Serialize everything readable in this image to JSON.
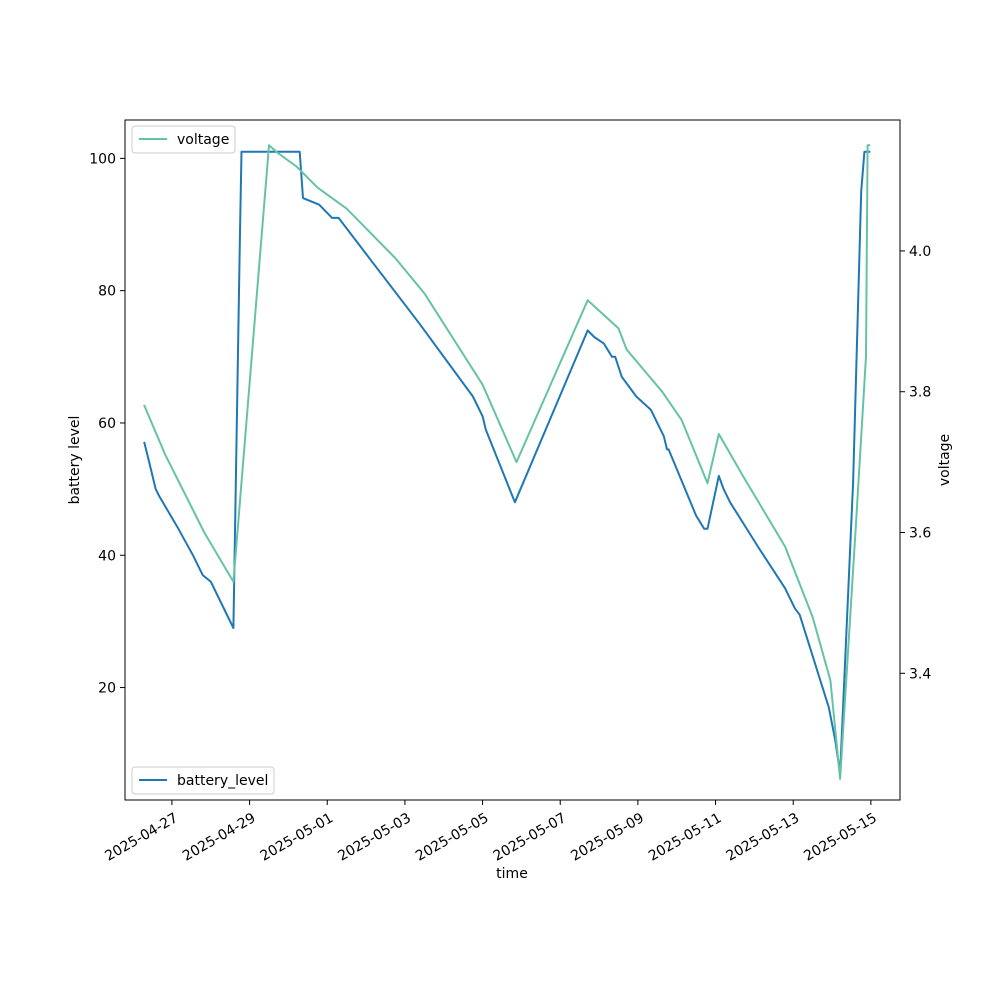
{
  "chart_data": {
    "type": "line",
    "xlabel": "time",
    "ylabel_left": "battery level",
    "ylabel_right": "voltage",
    "x_ticks": [
      "2025-04-27",
      "2025-04-29",
      "2025-05-01",
      "2025-05-03",
      "2025-05-05",
      "2025-05-07",
      "2025-05-09",
      "2025-05-11",
      "2025-05-13",
      "2025-05-15"
    ],
    "y_left_ticks": [
      20,
      40,
      60,
      80,
      100
    ],
    "y_right_ticks": [
      3.4,
      3.6,
      3.8,
      4.0
    ],
    "xlim": [
      "2025-04-25 19:00",
      "2025-05-15 18:00"
    ],
    "y_left_lim": [
      3,
      105.8
    ],
    "y_right_lim": [
      3.22,
      4.186
    ],
    "legend_left": {
      "position": "lower-left",
      "label": "battery_level"
    },
    "legend_right": {
      "position": "upper-left",
      "label": "voltage"
    },
    "series": [
      {
        "name": "battery_level",
        "axis": "left",
        "color": "#1f77b4",
        "points": [
          [
            "2025-04-26 07:00",
            57
          ],
          [
            "2025-04-26 10:00",
            54
          ],
          [
            "2025-04-26 14:00",
            50
          ],
          [
            "2025-04-26 16:00",
            49
          ],
          [
            "2025-04-27 04:00",
            44
          ],
          [
            "2025-04-27 13:00",
            40
          ],
          [
            "2025-04-27 19:00",
            37
          ],
          [
            "2025-04-28 00:00",
            36
          ],
          [
            "2025-04-28 14:00",
            29
          ],
          [
            "2025-04-28 18:00",
            88
          ],
          [
            "2025-04-28 19:00",
            101
          ],
          [
            "2025-04-30 07:00",
            101
          ],
          [
            "2025-04-30 09:00",
            94
          ],
          [
            "2025-04-30 19:00",
            93
          ],
          [
            "2025-05-01 03:00",
            91
          ],
          [
            "2025-05-01 07:00",
            91
          ],
          [
            "2025-05-02 08:00",
            83
          ],
          [
            "2025-05-03 09:00",
            75
          ],
          [
            "2025-05-04 03:00",
            69
          ],
          [
            "2025-05-04 18:00",
            64
          ],
          [
            "2025-05-05 00:00",
            61
          ],
          [
            "2025-05-05 02:00",
            59
          ],
          [
            "2025-05-05 20:00",
            48
          ],
          [
            "2025-05-07 17:00",
            74
          ],
          [
            "2025-05-07 21:00",
            73
          ],
          [
            "2025-05-08 03:00",
            72
          ],
          [
            "2025-05-08 08:00",
            70
          ],
          [
            "2025-05-08 10:00",
            70
          ],
          [
            "2025-05-08 14:00",
            67
          ],
          [
            "2025-05-08 23:00",
            64
          ],
          [
            "2025-05-09 08:00",
            62
          ],
          [
            "2025-05-09 16:00",
            58
          ],
          [
            "2025-05-09 18:00",
            56
          ],
          [
            "2025-05-09 19:00",
            56
          ],
          [
            "2025-05-10 12:00",
            46
          ],
          [
            "2025-05-10 17:00",
            44
          ],
          [
            "2025-05-10 19:00",
            44
          ],
          [
            "2025-05-11 02:00",
            52
          ],
          [
            "2025-05-11 05:00",
            50
          ],
          [
            "2025-05-11 09:00",
            48
          ],
          [
            "2025-05-12 03:00",
            41
          ],
          [
            "2025-05-12 19:00",
            35
          ],
          [
            "2025-05-13 01:00",
            32
          ],
          [
            "2025-05-13 04:00",
            31
          ],
          [
            "2025-05-13 22:00",
            17
          ],
          [
            "2025-05-14 02:00",
            12
          ],
          [
            "2025-05-14 05:00",
            7
          ],
          [
            "2025-05-14 13:00",
            51
          ],
          [
            "2025-05-14 18:00",
            95
          ],
          [
            "2025-05-14 20:00",
            101
          ],
          [
            "2025-05-14 23:00",
            101
          ]
        ]
      },
      {
        "name": "voltage",
        "axis": "right",
        "color": "#66c2a5",
        "points": [
          [
            "2025-04-26 07:00",
            3.78
          ],
          [
            "2025-04-26 20:00",
            3.71
          ],
          [
            "2025-04-27 20:00",
            3.6
          ],
          [
            "2025-04-28 14:00",
            3.53
          ],
          [
            "2025-04-29 12:00",
            4.15
          ],
          [
            "2025-04-29 17:00",
            4.14
          ],
          [
            "2025-04-30 05:00",
            4.12
          ],
          [
            "2025-04-30 18:00",
            4.09
          ],
          [
            "2025-05-01 12:00",
            4.06
          ],
          [
            "2025-05-02 18:00",
            3.99
          ],
          [
            "2025-05-03 12:00",
            3.94
          ],
          [
            "2025-05-05 00:00",
            3.81
          ],
          [
            "2025-05-05 21:00",
            3.7
          ],
          [
            "2025-05-07 17:00",
            3.93
          ],
          [
            "2025-05-08 12:00",
            3.89
          ],
          [
            "2025-05-08 17:00",
            3.86
          ],
          [
            "2025-05-09 04:00",
            3.83
          ],
          [
            "2025-05-09 15:00",
            3.8
          ],
          [
            "2025-05-10 03:00",
            3.76
          ],
          [
            "2025-05-10 19:00",
            3.67
          ],
          [
            "2025-05-11 02:00",
            3.74
          ],
          [
            "2025-05-11 17:00",
            3.68
          ],
          [
            "2025-05-12 19:00",
            3.58
          ],
          [
            "2025-05-13 12:00",
            3.48
          ],
          [
            "2025-05-13 23:00",
            3.39
          ],
          [
            "2025-05-14 05:00",
            3.25
          ],
          [
            "2025-05-14 15:00",
            3.62
          ],
          [
            "2025-05-14 21:00",
            3.85
          ],
          [
            "2025-05-14 22:00",
            4.15
          ],
          [
            "2025-05-14 23:00",
            4.15
          ]
        ]
      }
    ]
  }
}
